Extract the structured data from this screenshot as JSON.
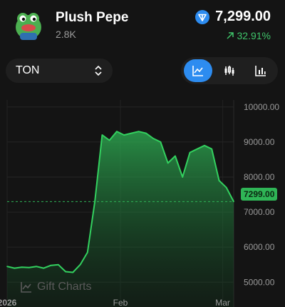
{
  "header": {
    "title": "Plush Pepe",
    "subtitle": "2.8K",
    "price": "7,299.00",
    "change": "32.91%",
    "avatar_icon": "pepe-avatar-icon",
    "currency_icon": "ton-diamond-icon"
  },
  "controls": {
    "currency": "TON",
    "views": [
      "line-chart-icon",
      "candlestick-chart-icon",
      "bar-chart-icon"
    ],
    "active_view": 0
  },
  "chart": {
    "current_price_label": "7299.00",
    "watermark": "Gift Charts"
  },
  "colors": {
    "background": "#141414",
    "line": "#33d15f",
    "accent": "#2d8cf0",
    "positive": "#3fc46a"
  },
  "chart_data": {
    "type": "area",
    "x": [
      "2026-01-01",
      "2026-01-03",
      "2026-01-05",
      "2026-01-07",
      "2026-01-09",
      "2026-01-11",
      "2026-01-13",
      "2026-01-15",
      "2026-01-17",
      "2026-01-19",
      "2026-01-21",
      "2026-01-23",
      "2026-01-25",
      "2026-01-27",
      "2026-01-29",
      "2026-01-31",
      "2026-02-02",
      "2026-02-04",
      "2026-02-06",
      "2026-02-08",
      "2026-02-10",
      "2026-02-12",
      "2026-02-14",
      "2026-02-16",
      "2026-02-18",
      "2026-02-20",
      "2026-02-22",
      "2026-02-24",
      "2026-02-26",
      "2026-02-28",
      "2026-03-02",
      "2026-03-04"
    ],
    "series": [
      {
        "values": [
          5450,
          5400,
          5430,
          5420,
          5450,
          5400,
          5480,
          5500,
          5300,
          5280,
          5500,
          5850,
          7300,
          9200,
          9050,
          9300,
          9200,
          9250,
          9300,
          9250,
          9100,
          9000,
          8400,
          8600,
          8000,
          8700,
          8800,
          8900,
          8800,
          7900,
          7700,
          7299
        ]
      }
    ],
    "xticks": [
      "2026",
      "Feb",
      "Mar"
    ],
    "xtick_dates": [
      "2026-01-01",
      "2026-02-01",
      "2026-03-01"
    ],
    "yticks": [
      "10000.00",
      "9000.00",
      "8000.00",
      "7000.00",
      "6000.00",
      "5000.00"
    ],
    "ytick_values": [
      10000,
      9000,
      8000,
      7000,
      6000,
      5000
    ],
    "ylim": [
      4700,
      10200
    ],
    "current_value": 7299
  }
}
